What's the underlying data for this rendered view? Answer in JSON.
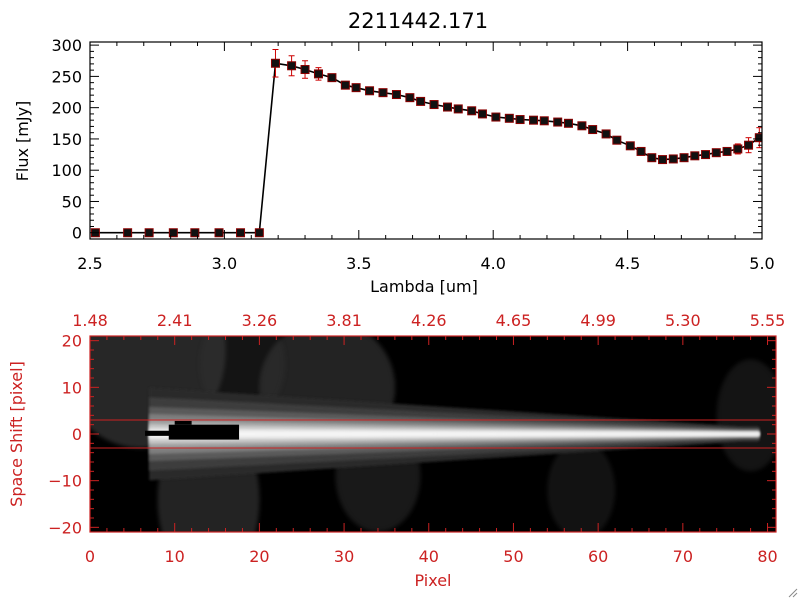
{
  "chart_data": [
    {
      "type": "scatter",
      "title": "2211442.171",
      "xlabel": "Lambda [um]",
      "ylabel": "Flux [mJy]",
      "xlim": [
        2.5,
        5.0
      ],
      "ylim": [
        -10,
        305
      ],
      "xticks": [
        "2.5",
        "3.0",
        "3.5",
        "4.0",
        "4.5",
        "5.0"
      ],
      "xtick_values": [
        2.5,
        3.0,
        3.5,
        4.0,
        4.5,
        5.0
      ],
      "yticks": [
        "0",
        "50",
        "100",
        "150",
        "200",
        "250",
        "300"
      ],
      "ytick_values": [
        0,
        50,
        100,
        150,
        200,
        250,
        300
      ],
      "grid": false,
      "series": [
        {
          "marker": "filled-square",
          "line": true,
          "errorbar_color": "#cc0000",
          "x": [
            2.52,
            2.64,
            2.72,
            2.81,
            2.89,
            2.98,
            3.06,
            3.13,
            3.19,
            3.25,
            3.3,
            3.35,
            3.4,
            3.45,
            3.49,
            3.54,
            3.59,
            3.64,
            3.69,
            3.73,
            3.78,
            3.83,
            3.87,
            3.92,
            3.96,
            4.01,
            4.06,
            4.1,
            4.15,
            4.19,
            4.24,
            4.28,
            4.33,
            4.37,
            4.42,
            4.46,
            4.51,
            4.55,
            4.59,
            4.63,
            4.67,
            4.71,
            4.75,
            4.79,
            4.83,
            4.87,
            4.91,
            4.95,
            4.99
          ],
          "y": [
            0,
            0,
            0,
            0,
            0,
            0,
            0,
            0,
            271,
            267,
            261,
            254,
            248,
            236,
            232,
            227,
            224,
            221,
            216,
            210,
            205,
            201,
            198,
            195,
            190,
            185,
            183,
            181,
            180,
            179,
            177,
            175,
            171,
            165,
            158,
            148,
            139,
            130,
            120,
            117,
            118,
            120,
            123,
            125,
            128,
            130,
            134,
            140,
            152
          ],
          "err": [
            0,
            0,
            0,
            0,
            0,
            0,
            0,
            0,
            22,
            16,
            14,
            10,
            5,
            4,
            4,
            4,
            4,
            4,
            4,
            4,
            4,
            4,
            4,
            4,
            4,
            4,
            4,
            4,
            4,
            4,
            4,
            4,
            4,
            4,
            4,
            4,
            4,
            4,
            4,
            4,
            4,
            4,
            4,
            4,
            4,
            6,
            8,
            12,
            16
          ]
        }
      ]
    },
    {
      "type": "heatmap",
      "xlabel": "Pixel",
      "ylabel": "Space Shift [pixel]",
      "xlim": [
        0,
        81
      ],
      "ylim": [
        -21,
        21
      ],
      "xticks": [
        "0",
        "10",
        "20",
        "30",
        "40",
        "50",
        "60",
        "70",
        "80"
      ],
      "xtick_values": [
        0,
        10,
        20,
        30,
        40,
        50,
        60,
        70,
        80
      ],
      "top_xticks": [
        "1.48",
        "2.41",
        "3.26",
        "3.81",
        "4.26",
        "4.65",
        "4.99",
        "5.30",
        "5.55"
      ],
      "yticks": [
        "20",
        "10",
        "0",
        "−10",
        "−20"
      ],
      "ytick_values": [
        20,
        10,
        0,
        -10,
        -20
      ],
      "extraction_window": [
        -3,
        3
      ],
      "colormap": "grayscale",
      "axis_color": "#cc2222"
    }
  ]
}
